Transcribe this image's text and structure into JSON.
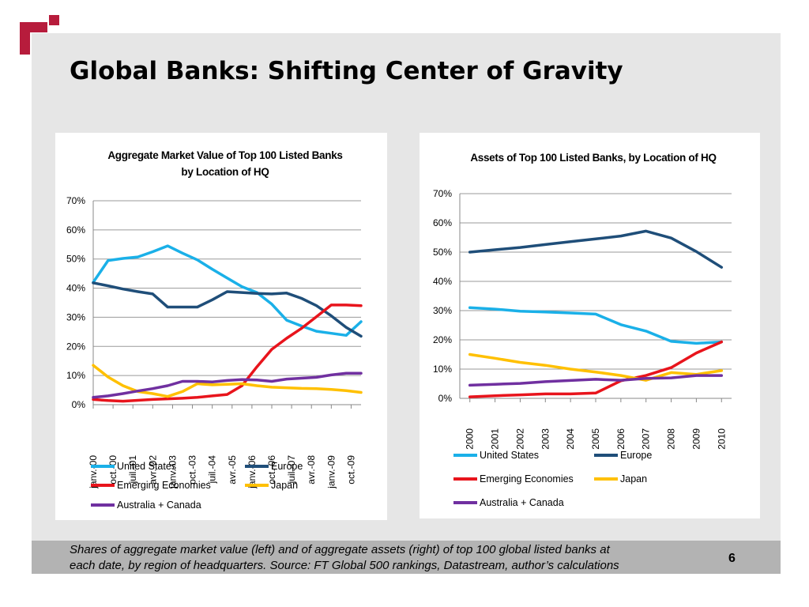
{
  "slide": {
    "title": "Global Banks: Shifting Center of Gravity",
    "caption_line1": "Shares of aggregate market value (left) and of aggregate assets (right) of top 100 global listed banks at",
    "caption_line2": "each date, by region of headquarters. Source: FT Global 500 rankings, Datastream, author’s calculations",
    "page_number": "6",
    "logo_color": "#b71c3c"
  },
  "chart_data": [
    {
      "type": "line",
      "title_line1": "Aggregate Market Value of Top 100 Listed Banks",
      "title_line2": "by Location of HQ",
      "ylim": [
        0,
        0.7
      ],
      "yticks": [
        "0%",
        "10%",
        "20%",
        "30%",
        "40%",
        "50%",
        "60%",
        "70%"
      ],
      "grid": true,
      "legend_position": "bottom",
      "xticks": [
        "janv.-00",
        "oct.-00",
        "juil.-01",
        "avr.-02",
        "janv.-03",
        "oct.-03",
        "juil.-04",
        "avr.-05",
        "janv.-06",
        "oct.-06",
        "juil.-07",
        "avr.-08",
        "janv.-09",
        "oct.-09"
      ],
      "x": [
        0,
        0.75,
        1.5,
        2.25,
        3,
        3.75,
        4.5,
        5.25,
        6,
        6.75,
        7.5,
        8.25,
        9,
        9.75,
        10.5,
        11.25,
        12,
        12.75,
        13.5
      ],
      "series": [
        {
          "name": "United States",
          "color": "#1ab0e8",
          "values": [
            0.42,
            0.495,
            0.502,
            0.507,
            0.525,
            0.545,
            0.52,
            0.497,
            0.465,
            0.435,
            0.405,
            0.385,
            0.345,
            0.29,
            0.27,
            0.252,
            0.245,
            0.238,
            0.285
          ]
        },
        {
          "name": "Europe",
          "color": "#1f4e79",
          "values": [
            0.418,
            0.408,
            0.397,
            0.388,
            0.38,
            0.335,
            0.335,
            0.335,
            0.36,
            0.388,
            0.385,
            0.382,
            0.38,
            0.383,
            0.365,
            0.34,
            0.305,
            0.265,
            0.235
          ]
        },
        {
          "name": "Emerging Economies",
          "color": "#e8141c",
          "values": [
            0.018,
            0.014,
            0.012,
            0.015,
            0.018,
            0.02,
            0.022,
            0.025,
            0.03,
            0.035,
            0.065,
            0.13,
            0.19,
            0.228,
            0.262,
            0.302,
            0.342,
            0.342,
            0.34
          ]
        },
        {
          "name": "Japan",
          "color": "#ffc000",
          "values": [
            0.135,
            0.095,
            0.065,
            0.045,
            0.038,
            0.028,
            0.045,
            0.072,
            0.068,
            0.07,
            0.072,
            0.065,
            0.06,
            0.058,
            0.056,
            0.055,
            0.052,
            0.048,
            0.042
          ]
        },
        {
          "name": "Australia + Canada",
          "color": "#7030a0",
          "values": [
            0.025,
            0.03,
            0.038,
            0.047,
            0.055,
            0.065,
            0.08,
            0.08,
            0.078,
            0.083,
            0.086,
            0.085,
            0.08,
            0.088,
            0.091,
            0.094,
            0.102,
            0.108,
            0.108
          ]
        }
      ]
    },
    {
      "type": "line",
      "title": "Assets of Top 100  Listed Banks,  by Location of HQ",
      "ylim": [
        0,
        0.7
      ],
      "yticks": [
        "0%",
        "10%",
        "20%",
        "30%",
        "40%",
        "50%",
        "60%",
        "70%"
      ],
      "grid": true,
      "legend_position": "bottom",
      "categories": [
        "2000",
        "2001",
        "2002",
        "2003",
        "2004",
        "2005",
        "2006",
        "2007",
        "2008",
        "2009",
        "2010"
      ],
      "series": [
        {
          "name": "United States",
          "color": "#1ab0e8",
          "values": [
            0.31,
            0.305,
            0.298,
            0.295,
            0.292,
            0.288,
            0.252,
            0.23,
            0.195,
            0.188,
            0.193
          ]
        },
        {
          "name": "Europe",
          "color": "#1f4e79",
          "values": [
            0.5,
            0.508,
            0.516,
            0.526,
            0.536,
            0.545,
            0.555,
            0.572,
            0.548,
            0.502,
            0.448
          ]
        },
        {
          "name": "Emerging Economies",
          "color": "#e8141c",
          "values": [
            0.005,
            0.009,
            0.012,
            0.015,
            0.015,
            0.018,
            0.06,
            0.078,
            0.105,
            0.155,
            0.193
          ]
        },
        {
          "name": "Japan",
          "color": "#ffc000",
          "values": [
            0.15,
            0.137,
            0.123,
            0.113,
            0.1,
            0.09,
            0.078,
            0.062,
            0.088,
            0.082,
            0.095
          ]
        },
        {
          "name": "Australia + Canada",
          "color": "#7030a0",
          "values": [
            0.045,
            0.048,
            0.051,
            0.057,
            0.061,
            0.065,
            0.062,
            0.068,
            0.07,
            0.078,
            0.078
          ]
        }
      ]
    }
  ]
}
